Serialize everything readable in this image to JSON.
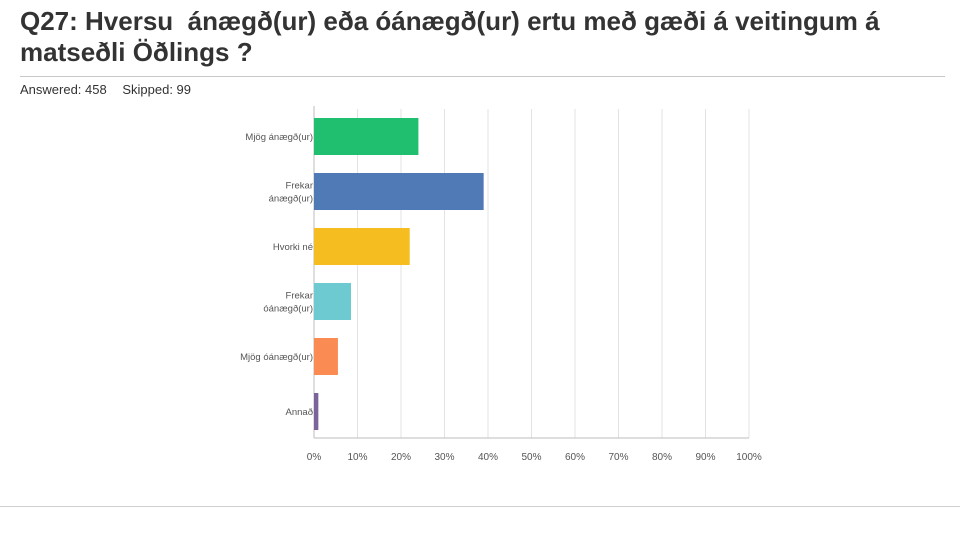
{
  "question": {
    "title": "Q27: Hversu  ánægð(ur) eða óánægð(ur) ertu með gæði á veitingum á matseðli Öðlings ?",
    "answered": "Answered: 458",
    "skipped": "Skipped: 99"
  },
  "chart_data": {
    "type": "bar",
    "orientation": "horizontal",
    "categories": [
      [
        "Mjög ánægð(ur)"
      ],
      [
        "Frekar",
        "ánægð(ur)"
      ],
      [
        "Hvorki né"
      ],
      [
        "Frekar",
        "óánægð(ur)"
      ],
      [
        "Mjög óánægð(ur)"
      ],
      [
        "Annað"
      ]
    ],
    "values": [
      24,
      39,
      22,
      8.5,
      5.5,
      1
    ],
    "colors": [
      "#1fbf6f",
      "#4f7ab5",
      "#f5bd1f",
      "#6dcad0",
      "#fa8b52",
      "#7b6499"
    ],
    "xlim": [
      0,
      100
    ],
    "xticks": [
      "0%",
      "10%",
      "20%",
      "30%",
      "40%",
      "50%",
      "60%",
      "70%",
      "80%",
      "90%",
      "100%"
    ],
    "grid": true
  }
}
